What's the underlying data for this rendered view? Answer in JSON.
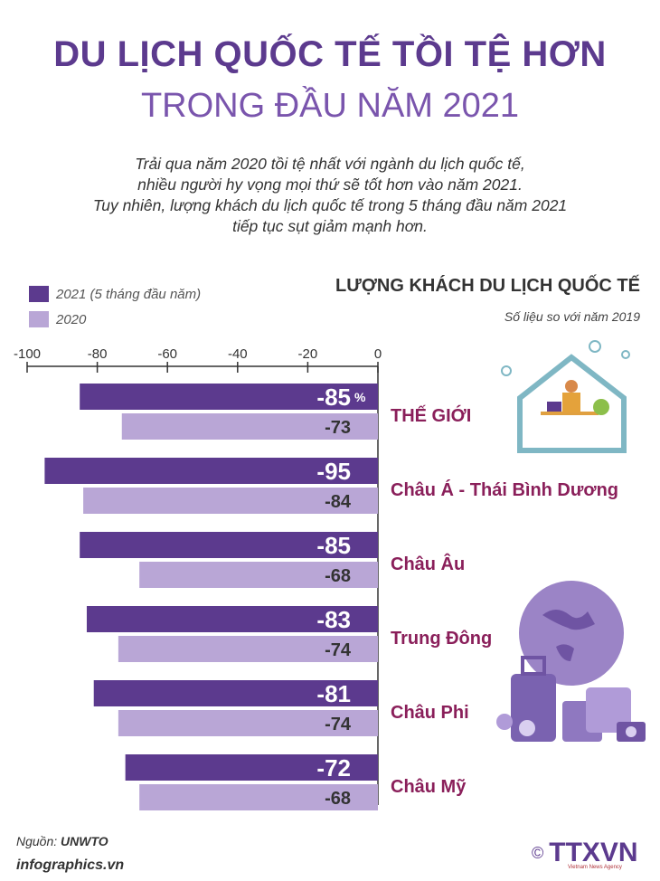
{
  "header": {
    "title_line1": "DU LỊCH QUỐC TẾ TỒI TỆ HƠN",
    "title_line2": "TRONG ĐẦU NĂM 2021",
    "intro_lines": [
      "Trải qua năm 2020 tồi tệ nhất với ngành du lịch quốc tế,",
      "nhiều người hy vọng mọi thứ sẽ tốt hơn vào năm 2021.",
      "Tuy nhiên, lượng khách du lịch quốc tế trong 5 tháng đầu năm 2021",
      "tiếp tục sụt giảm mạnh hơn."
    ]
  },
  "footer": {
    "source_label": "Nguồn:",
    "source_value": "UNWTO",
    "site": "infographics.vn",
    "logo_copyright": "©",
    "logo_text": "TTXVN",
    "logo_tagline": "Vietnam News Agency"
  },
  "colors": {
    "series_2021": "#5c3a8e",
    "series_2020": "#b9a6d6",
    "category_label": "#8a1f5a",
    "title": "#5c3a8e"
  },
  "chart_data": {
    "type": "bar",
    "orientation": "horizontal",
    "title": "LƯỢNG KHÁCH DU LỊCH QUỐC TẾ",
    "subtitle": "Số liệu so với năm 2019",
    "xlim": [
      -100,
      0
    ],
    "xticks": [
      "-100",
      "-80",
      "-60",
      "-40",
      "-20",
      "0"
    ],
    "xtick_values": [
      -100,
      -80,
      -60,
      -40,
      -20,
      0
    ],
    "unit_label": "%",
    "categories": [
      "THẾ GIỚI",
      "Châu Á - Thái Bình Dương",
      "Châu Âu",
      "Trung Đông",
      "Châu Phi",
      "Châu Mỹ"
    ],
    "series": [
      {
        "name": "2021 (5 tháng đầu năm)",
        "values": [
          -85,
          -95,
          -85,
          -83,
          -81,
          -72
        ],
        "labels": [
          "-85",
          "-95",
          "-85",
          "-83",
          "-81",
          "-72"
        ]
      },
      {
        "name": "2020",
        "values": [
          -73,
          -84,
          -68,
          -74,
          -74,
          -68
        ],
        "labels": [
          "-73",
          "-84",
          "-68",
          "-74",
          "-74",
          "-68"
        ]
      }
    ],
    "legend_position": "top-left"
  }
}
